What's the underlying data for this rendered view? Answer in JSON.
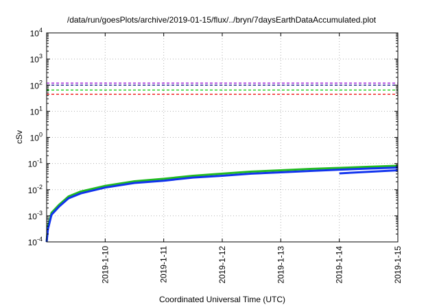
{
  "chart_data": {
    "type": "line",
    "title": "/data/run/goesPlots/archive/2019-01-15/flux/../bryn/7daysEarthDataAccumulated.plot",
    "xlabel": "Coordinated Universal Time (UTC)",
    "ylabel": "cSv",
    "yscale": "log",
    "ylim": [
      0.0001,
      10000
    ],
    "xlim": [
      "2019-01-09",
      "2019-01-15"
    ],
    "grid": true,
    "y_ticks": [
      {
        "base": "10",
        "exp": "-4",
        "value": 0.0001
      },
      {
        "base": "10",
        "exp": "-3",
        "value": 0.001
      },
      {
        "base": "10",
        "exp": "-2",
        "value": 0.01
      },
      {
        "base": "10",
        "exp": "-1",
        "value": 0.1
      },
      {
        "base": "10",
        "exp": "0",
        "value": 1
      },
      {
        "base": "10",
        "exp": "1",
        "value": 10
      },
      {
        "base": "10",
        "exp": "2",
        "value": 100
      },
      {
        "base": "10",
        "exp": "3",
        "value": 1000
      },
      {
        "base": "10",
        "exp": "4",
        "value": 10000
      }
    ],
    "x_ticks": [
      {
        "label": "2019-1-10",
        "value": "2019-01-10"
      },
      {
        "label": "2019-1-11",
        "value": "2019-01-11"
      },
      {
        "label": "2019-1-12",
        "value": "2019-01-12"
      },
      {
        "label": "2019-1-13",
        "value": "2019-01-13"
      },
      {
        "label": "2019-1-14",
        "value": "2019-01-14"
      },
      {
        "label": "2019-1-15",
        "value": "2019-01-15"
      }
    ],
    "thresholds": [
      {
        "value": 120,
        "color": "#9400d3"
      },
      {
        "value": 100,
        "color": "#000080"
      },
      {
        "value": 65,
        "color": "#00cc00"
      },
      {
        "value": 45,
        "color": "#ee0000"
      }
    ],
    "series": [
      {
        "color": "#22bb22",
        "x": [
          "2019-01-09 00:00",
          "2019-01-09 00:30",
          "2019-01-09 02:00",
          "2019-01-09 05:00",
          "2019-01-09 09:00",
          "2019-01-09 14:00",
          "2019-01-10 00:00",
          "2019-01-10 12:00",
          "2019-01-11 00:00",
          "2019-01-11 12:00",
          "2019-01-12 00:00",
          "2019-01-12 12:00",
          "2019-01-13 00:00",
          "2019-01-13 12:00",
          "2019-01-14 00:00",
          "2019-01-14 12:00",
          "2019-01-15 00:00"
        ],
        "values": [
          0.0001,
          0.0004,
          0.0013,
          0.0026,
          0.0055,
          0.0085,
          0.014,
          0.021,
          0.026,
          0.034,
          0.041,
          0.049,
          0.055,
          0.062,
          0.068,
          0.075,
          0.082
        ]
      },
      {
        "color": "#1133ee",
        "x": [
          "2019-01-09 00:00",
          "2019-01-09 00:30",
          "2019-01-09 02:00",
          "2019-01-09 05:00",
          "2019-01-09 09:00",
          "2019-01-09 14:00",
          "2019-01-10 00:00",
          "2019-01-10 12:00",
          "2019-01-11 00:00",
          "2019-01-11 12:00",
          "2019-01-12 00:00",
          "2019-01-12 12:00",
          "2019-01-13 00:00",
          "2019-01-13 12:00",
          "2019-01-14 00:00",
          "2019-01-14 12:00",
          "2019-01-15 00:00"
        ],
        "values": [
          0.0001,
          0.0003,
          0.0011,
          0.0022,
          0.0047,
          0.0072,
          0.012,
          0.018,
          0.022,
          0.029,
          0.034,
          0.041,
          0.046,
          0.052,
          0.058,
          0.064,
          0.07
        ]
      },
      {
        "color": "#1133ee",
        "x": [
          "2019-01-14 00:00",
          "2019-01-15 00:00"
        ],
        "values": [
          0.042,
          0.055
        ]
      }
    ]
  }
}
